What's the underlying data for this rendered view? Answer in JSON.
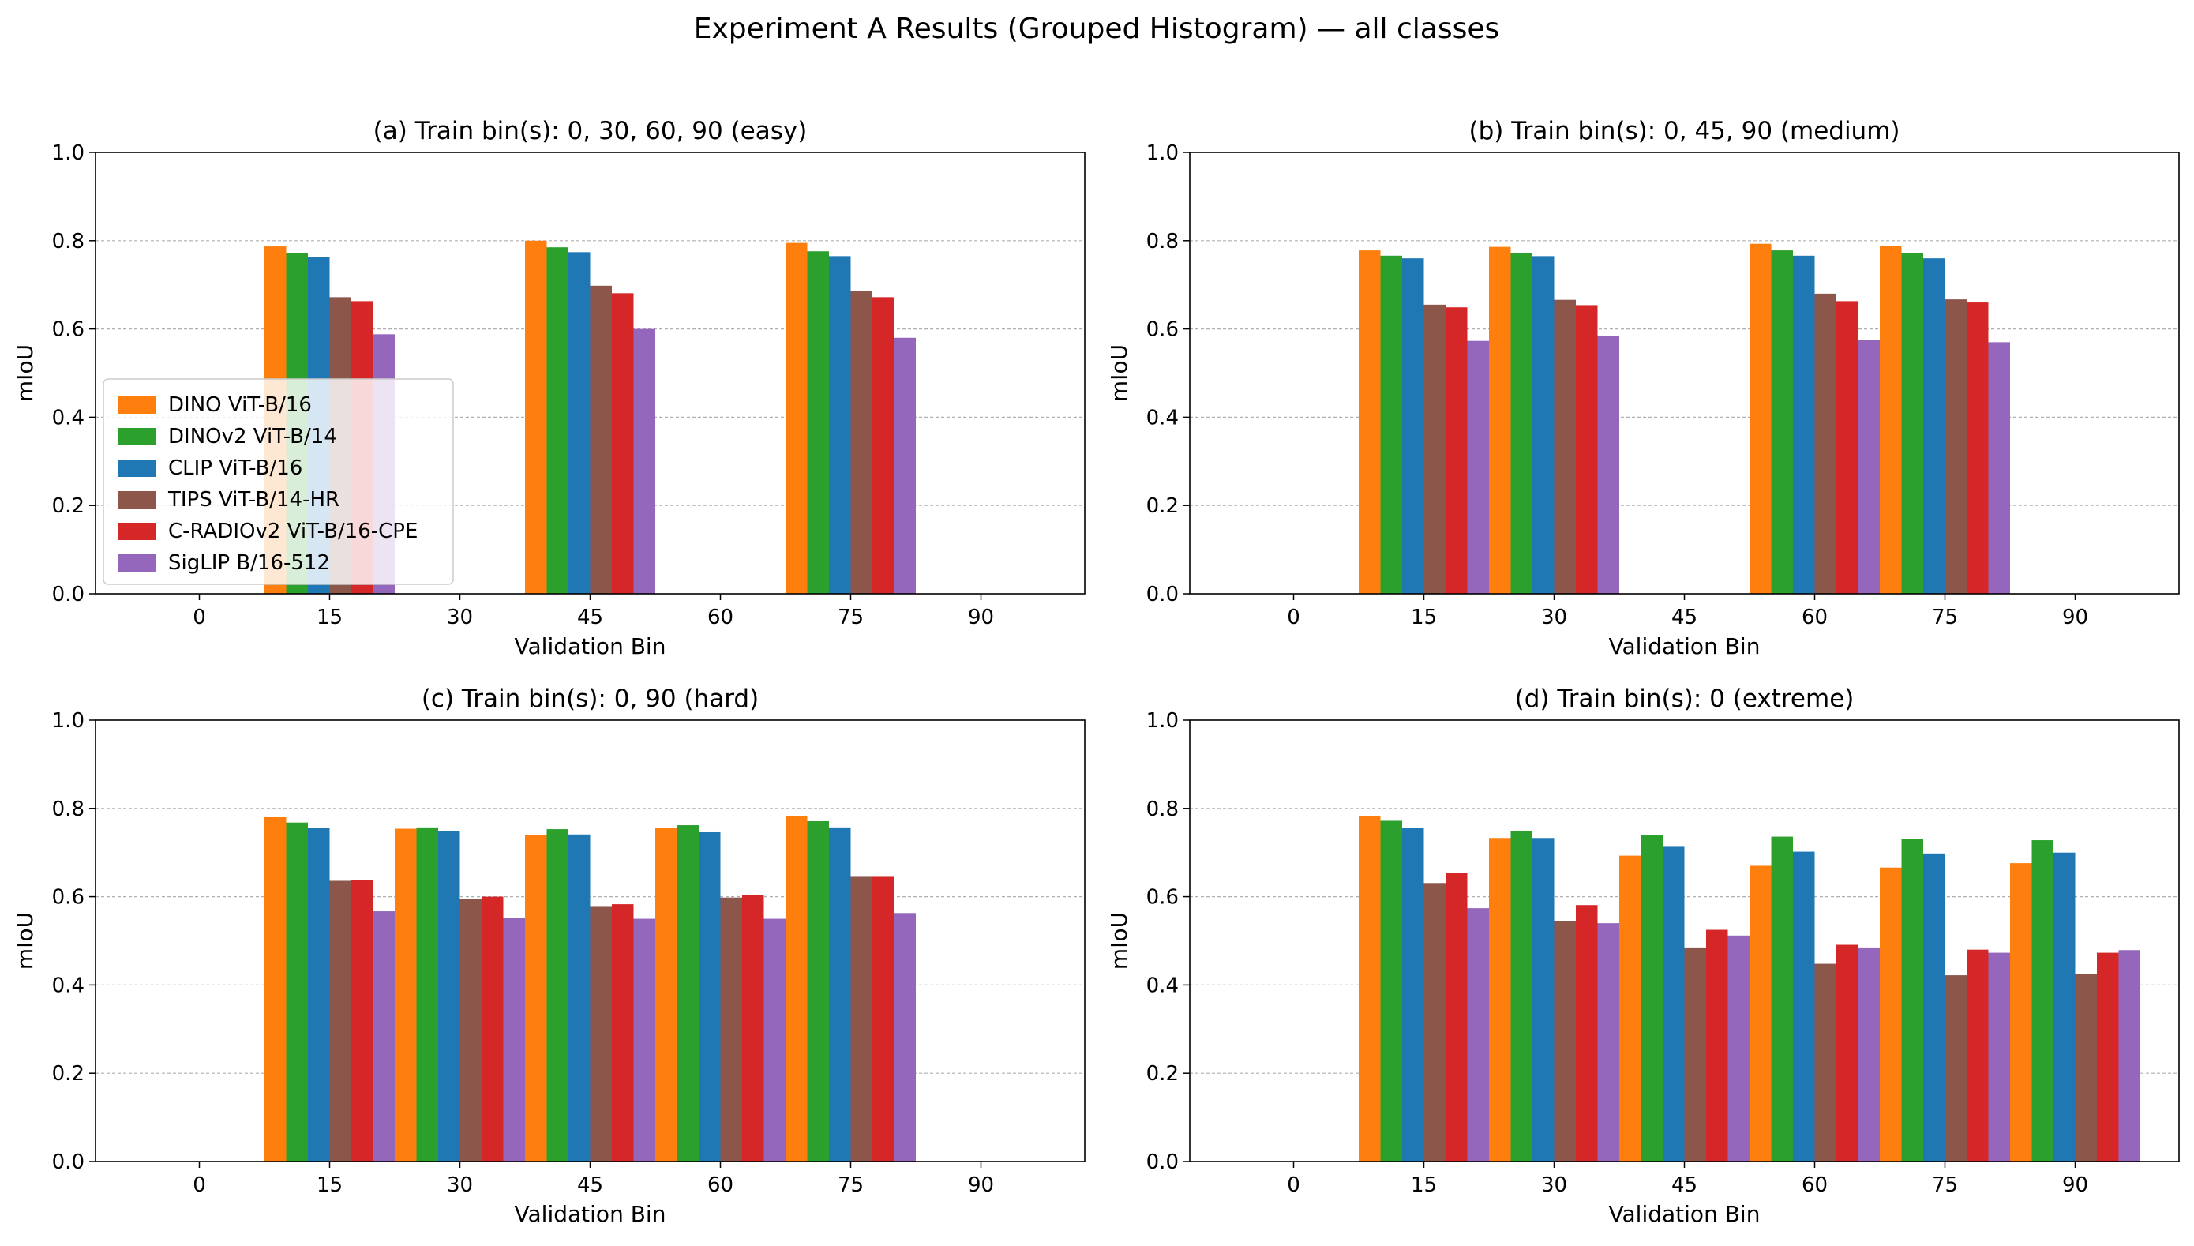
{
  "figure": {
    "title": "Experiment A Results (Grouped Histogram) — all classes"
  },
  "legend": {
    "placement": "lower-left of panel (a)"
  },
  "chart_data": [
    {
      "type": "bar",
      "title": "(a) Train bin(s): 0, 30, 60, 90 (easy)",
      "xlabel": "Validation Bin",
      "ylabel": "mIoU",
      "ylim": [
        0,
        1.0
      ],
      "grid": "y dashed",
      "categories": [
        "0",
        "15",
        "30",
        "45",
        "60",
        "75",
        "90"
      ],
      "yticks": [
        "0.0",
        "0.2",
        "0.4",
        "0.6",
        "0.8",
        "1.0"
      ],
      "series": [
        {
          "name": "DINO ViT-B/16",
          "color": "#ff7f0e",
          "values": [
            null,
            0.787,
            null,
            0.8,
            null,
            0.795,
            null
          ]
        },
        {
          "name": "DINOv2 ViT-B/14",
          "color": "#2ca02c",
          "values": [
            null,
            0.771,
            null,
            0.785,
            null,
            0.776,
            null
          ]
        },
        {
          "name": "CLIP ViT-B/16",
          "color": "#1f77b4",
          "values": [
            null,
            0.763,
            null,
            0.774,
            null,
            0.765,
            null
          ]
        },
        {
          "name": "TIPS ViT-B/14-HR",
          "color": "#8c564b",
          "values": [
            null,
            0.672,
            null,
            0.698,
            null,
            0.686,
            null
          ]
        },
        {
          "name": "C-RADIOv2 ViT-B/16-CPE",
          "color": "#d62728",
          "values": [
            null,
            0.663,
            null,
            0.681,
            null,
            0.672,
            null
          ]
        },
        {
          "name": "SigLIP B/16-512",
          "color": "#9467bd",
          "values": [
            null,
            0.588,
            null,
            0.6,
            null,
            0.58,
            null
          ]
        }
      ]
    },
    {
      "type": "bar",
      "title": "(b) Train bin(s): 0, 45, 90 (medium)",
      "xlabel": "Validation Bin",
      "ylabel": "mIoU",
      "ylim": [
        0,
        1.0
      ],
      "grid": "y dashed",
      "categories": [
        "0",
        "15",
        "30",
        "45",
        "60",
        "75",
        "90"
      ],
      "yticks": [
        "0.0",
        "0.2",
        "0.4",
        "0.6",
        "0.8",
        "1.0"
      ],
      "series": [
        {
          "name": "DINO ViT-B/16",
          "color": "#ff7f0e",
          "values": [
            null,
            0.778,
            0.786,
            null,
            0.793,
            0.788,
            null
          ]
        },
        {
          "name": "DINOv2 ViT-B/14",
          "color": "#2ca02c",
          "values": [
            null,
            0.766,
            0.772,
            null,
            0.778,
            0.771,
            null
          ]
        },
        {
          "name": "CLIP ViT-B/16",
          "color": "#1f77b4",
          "values": [
            null,
            0.76,
            0.765,
            null,
            0.766,
            0.76,
            null
          ]
        },
        {
          "name": "TIPS ViT-B/14-HR",
          "color": "#8c564b",
          "values": [
            null,
            0.655,
            0.666,
            null,
            0.68,
            0.667,
            null
          ]
        },
        {
          "name": "C-RADIOv2 ViT-B/16-CPE",
          "color": "#d62728",
          "values": [
            null,
            0.649,
            0.654,
            null,
            0.663,
            0.66,
            null
          ]
        },
        {
          "name": "SigLIP B/16-512",
          "color": "#9467bd",
          "values": [
            null,
            0.573,
            0.585,
            null,
            0.576,
            0.57,
            null
          ]
        }
      ]
    },
    {
      "type": "bar",
      "title": "(c) Train bin(s): 0, 90 (hard)",
      "xlabel": "Validation Bin",
      "ylabel": "mIoU",
      "ylim": [
        0,
        1.0
      ],
      "grid": "y dashed",
      "categories": [
        "0",
        "15",
        "30",
        "45",
        "60",
        "75",
        "90"
      ],
      "yticks": [
        "0.0",
        "0.2",
        "0.4",
        "0.6",
        "0.8",
        "1.0"
      ],
      "series": [
        {
          "name": "DINO ViT-B/16",
          "color": "#ff7f0e",
          "values": [
            null,
            0.78,
            0.754,
            0.74,
            0.755,
            0.782,
            null
          ]
        },
        {
          "name": "DINOv2 ViT-B/14",
          "color": "#2ca02c",
          "values": [
            null,
            0.768,
            0.757,
            0.753,
            0.762,
            0.771,
            null
          ]
        },
        {
          "name": "CLIP ViT-B/16",
          "color": "#1f77b4",
          "values": [
            null,
            0.756,
            0.748,
            0.741,
            0.746,
            0.757,
            null
          ]
        },
        {
          "name": "TIPS ViT-B/14-HR",
          "color": "#8c564b",
          "values": [
            null,
            0.636,
            0.594,
            0.577,
            0.598,
            0.645,
            null
          ]
        },
        {
          "name": "C-RADIOv2 ViT-B/16-CPE",
          "color": "#d62728",
          "values": [
            null,
            0.638,
            0.6,
            0.583,
            0.604,
            0.645,
            null
          ]
        },
        {
          "name": "SigLIP B/16-512",
          "color": "#9467bd",
          "values": [
            null,
            0.567,
            0.552,
            0.55,
            0.55,
            0.563,
            null
          ]
        }
      ]
    },
    {
      "type": "bar",
      "title": "(d) Train bin(s): 0 (extreme)",
      "xlabel": "Validation Bin",
      "ylabel": "mIoU",
      "ylim": [
        0,
        1.0
      ],
      "grid": "y dashed",
      "categories": [
        "0",
        "15",
        "30",
        "45",
        "60",
        "75",
        "90"
      ],
      "yticks": [
        "0.0",
        "0.2",
        "0.4",
        "0.6",
        "0.8",
        "1.0"
      ],
      "series": [
        {
          "name": "DINO ViT-B/16",
          "color": "#ff7f0e",
          "values": [
            null,
            0.783,
            0.733,
            0.693,
            0.67,
            0.666,
            0.676
          ]
        },
        {
          "name": "DINOv2 ViT-B/14",
          "color": "#2ca02c",
          "values": [
            null,
            0.772,
            0.748,
            0.74,
            0.736,
            0.73,
            0.728
          ]
        },
        {
          "name": "CLIP ViT-B/16",
          "color": "#1f77b4",
          "values": [
            null,
            0.755,
            0.733,
            0.713,
            0.702,
            0.698,
            0.7
          ]
        },
        {
          "name": "TIPS ViT-B/14-HR",
          "color": "#8c564b",
          "values": [
            null,
            0.631,
            0.545,
            0.485,
            0.448,
            0.422,
            0.425
          ]
        },
        {
          "name": "C-RADIOv2 ViT-B/16-CPE",
          "color": "#d62728",
          "values": [
            null,
            0.654,
            0.581,
            0.525,
            0.491,
            0.48,
            0.473
          ]
        },
        {
          "name": "SigLIP B/16-512",
          "color": "#9467bd",
          "values": [
            null,
            0.574,
            0.54,
            0.512,
            0.485,
            0.473,
            0.479
          ]
        }
      ]
    }
  ]
}
